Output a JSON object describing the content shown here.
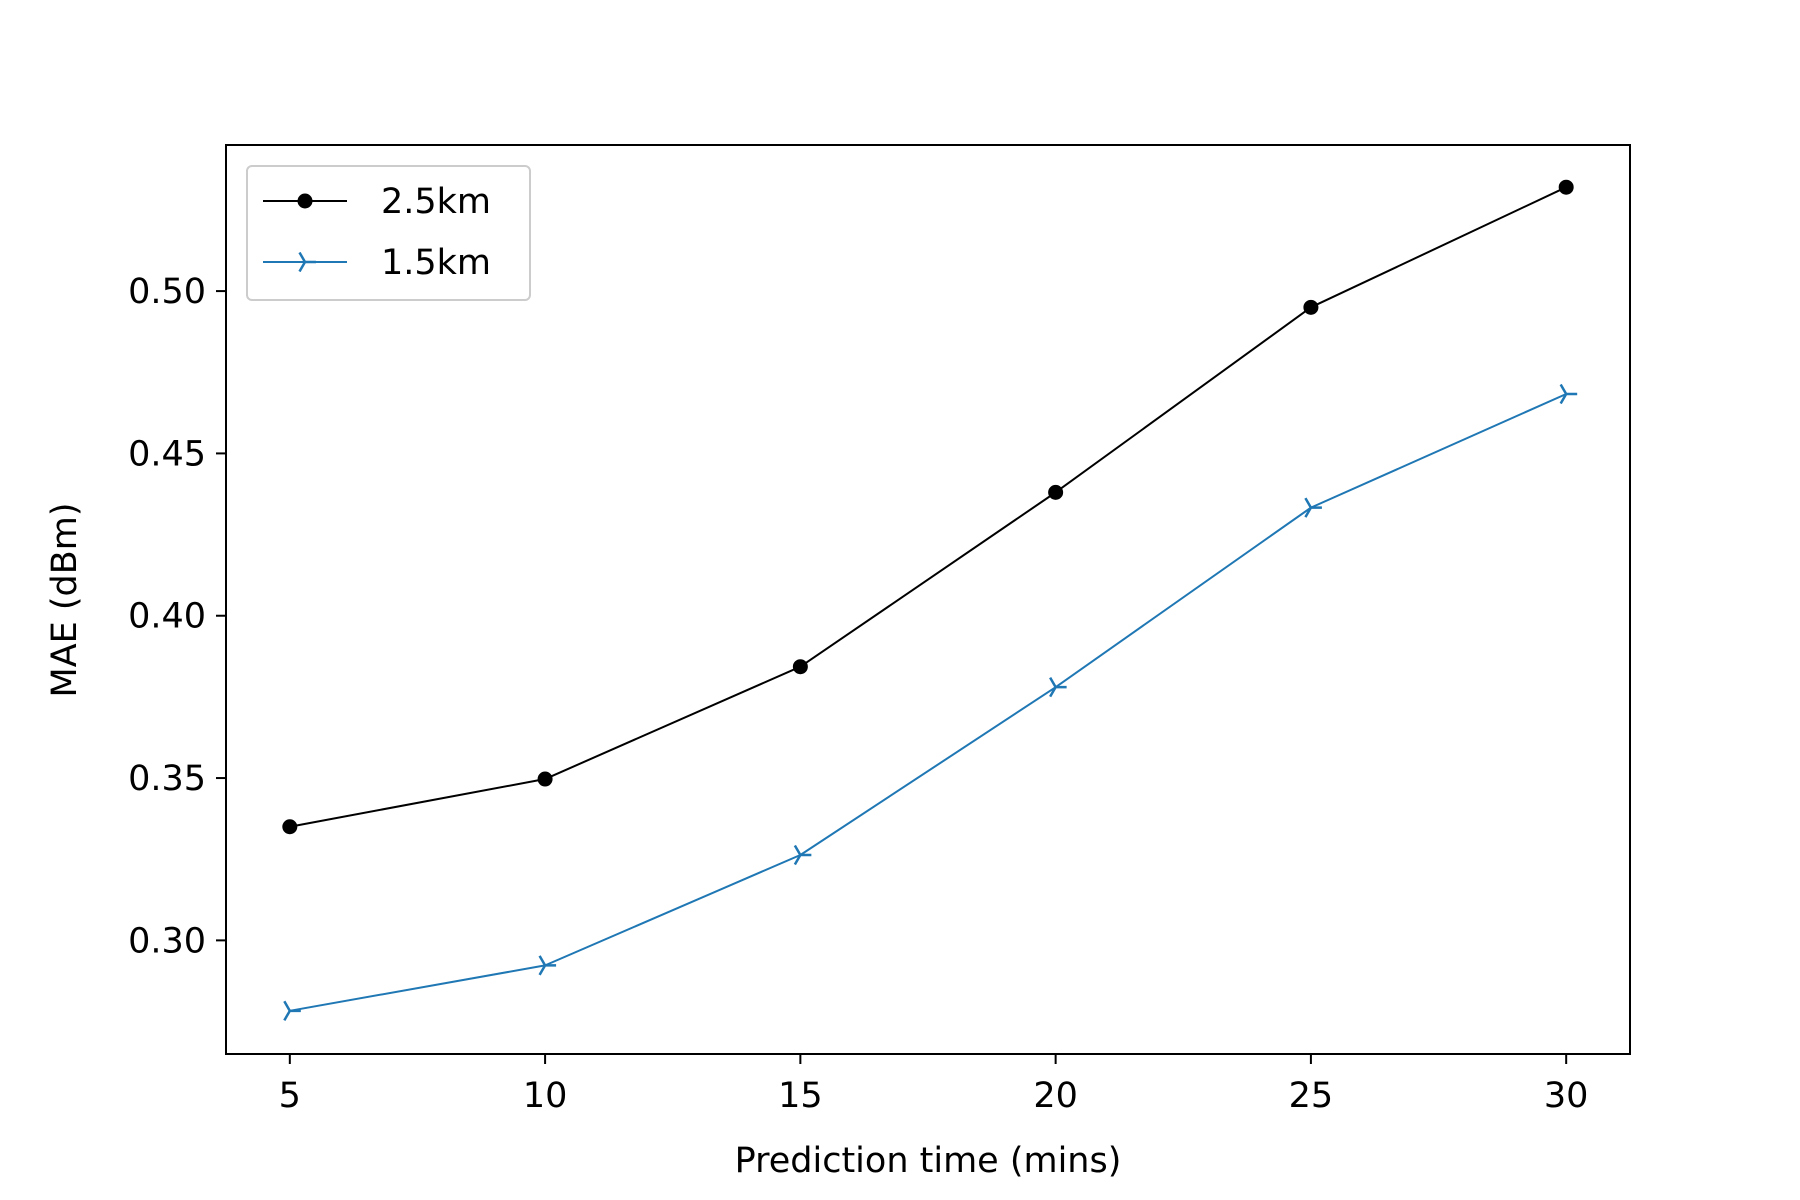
{
  "chart_data": {
    "type": "line",
    "title": "",
    "xlabel": "Prediction time (mins)",
    "ylabel": "MAE (dBm)",
    "x": [
      5,
      10,
      15,
      20,
      25,
      30
    ],
    "xlim": [
      3.75,
      31.25
    ],
    "ylim": [
      0.265,
      0.545
    ],
    "xticks": [
      5,
      10,
      15,
      20,
      25,
      30
    ],
    "xtick_labels": [
      "5",
      "10",
      "15",
      "20",
      "25",
      "30"
    ],
    "yticks": [
      0.3,
      0.35,
      0.4,
      0.45,
      0.5
    ],
    "ytick_labels": [
      "0.30",
      "0.35",
      "0.40",
      "0.45",
      "0.50"
    ],
    "grid": false,
    "legend_position": "top-left",
    "series": [
      {
        "name": "2.5km",
        "values": [
          0.335,
          0.3497,
          0.3843,
          0.438,
          0.495,
          0.532
        ],
        "color": "#000000",
        "marker": "circle"
      },
      {
        "name": "1.5km",
        "values": [
          0.2783,
          0.2923,
          0.3263,
          0.378,
          0.4333,
          0.4683
        ],
        "color": "#1f77b4",
        "marker": "tri-right"
      }
    ]
  }
}
